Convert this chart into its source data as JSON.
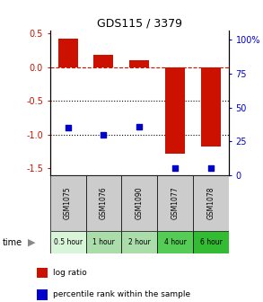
{
  "title": "GDS115 / 3379",
  "samples": [
    "GSM1075",
    "GSM1076",
    "GSM1090",
    "GSM1077",
    "GSM1078"
  ],
  "time_labels": [
    "0.5 hour",
    "1 hour",
    "2 hour",
    "4 hour",
    "6 hour"
  ],
  "time_colors": [
    "#d9f5d9",
    "#aaddaa",
    "#aaddaa",
    "#55cc55",
    "#33bb33"
  ],
  "log_ratios": [
    0.42,
    0.19,
    0.11,
    -1.28,
    -1.18
  ],
  "percentile_ranks": [
    35,
    30,
    36,
    5,
    5
  ],
  "bar_color": "#cc1100",
  "dot_color": "#0000cc",
  "ylim_left": [
    -1.6,
    0.55
  ],
  "ylim_right": [
    0,
    107
  ],
  "yticks_left": [
    0.5,
    0.0,
    -0.5,
    -1.0,
    -1.5
  ],
  "yticks_right": [
    100,
    75,
    50,
    25,
    0
  ],
  "hline_y": [
    0.0,
    -0.5,
    -1.0
  ],
  "hline_styles": [
    "--",
    ":",
    ":"
  ],
  "hline_colors": [
    "#cc1100",
    "#000000",
    "#000000"
  ],
  "legend_items": [
    "log ratio",
    "percentile rank within the sample"
  ],
  "legend_colors": [
    "#cc1100",
    "#0000cc"
  ],
  "left_tick_color": "#cc1100",
  "right_tick_color": "#0000cc",
  "bar_width": 0.55
}
